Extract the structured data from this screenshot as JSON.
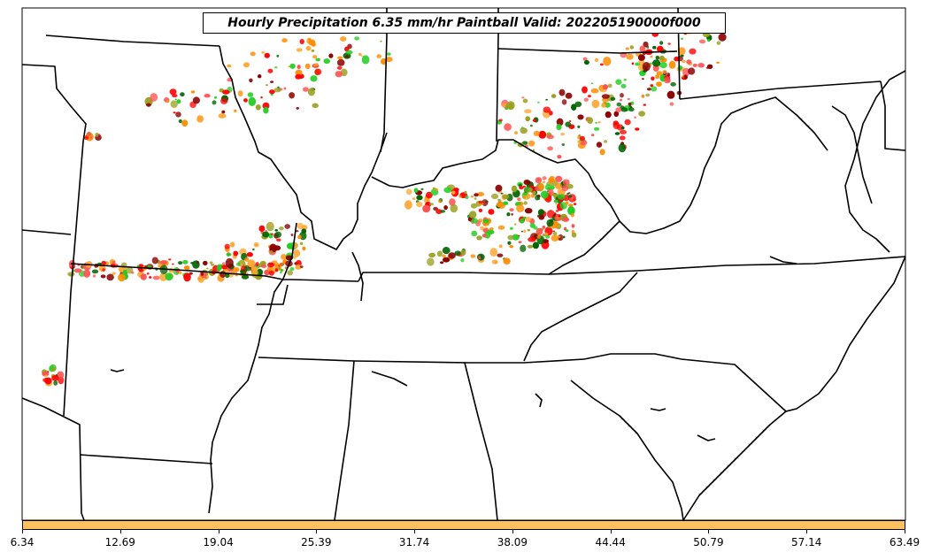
{
  "title": "Hourly Precipitation 6.35 mm/hr Paintball Valid: 202205190000f000",
  "colorbar": {
    "color": "#ffc060",
    "ticks": [
      "6.34",
      "12.69",
      "19.04",
      "25.39",
      "31.74",
      "38.09",
      "44.44",
      "50.79",
      "57.14",
      "63.49"
    ]
  },
  "member_colors": [
    "#ff0000",
    "#8b0000",
    "#006400",
    "#22cc22",
    "#ff8c00",
    "#ffa530",
    "#9aa020",
    "#ff5050"
  ],
  "boundary_color": "#000000"
}
